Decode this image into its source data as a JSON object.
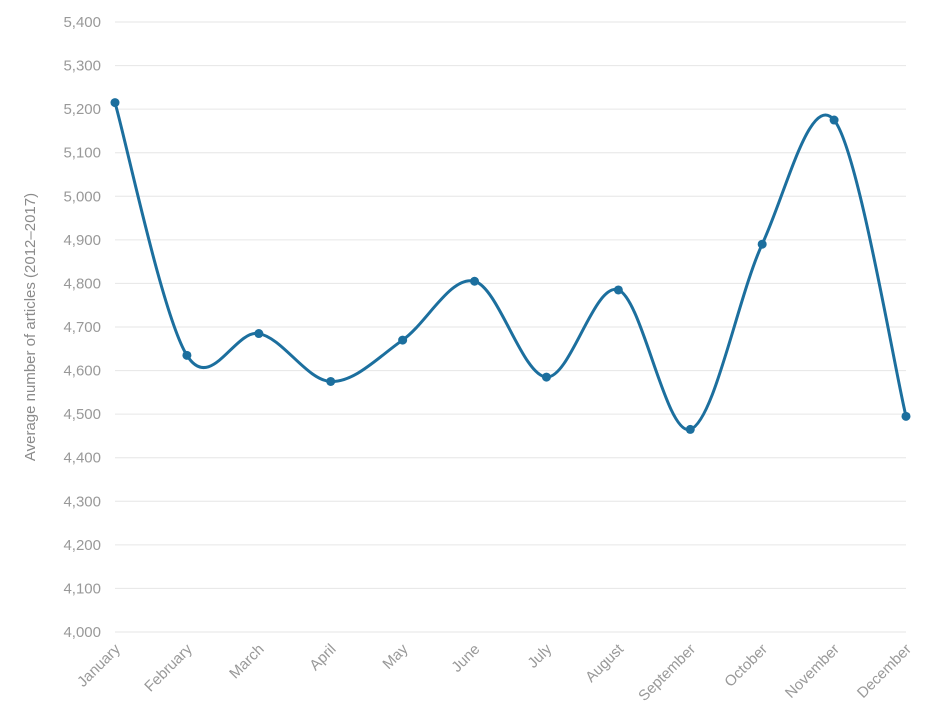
{
  "chart_data": {
    "type": "line",
    "title": "",
    "xlabel": "",
    "ylabel": "Average number of articles (2012–2017)",
    "categories": [
      "January",
      "February",
      "March",
      "April",
      "May",
      "June",
      "July",
      "August",
      "September",
      "October",
      "November",
      "December"
    ],
    "values": [
      5215,
      4635,
      4685,
      4575,
      4670,
      4805,
      4585,
      4785,
      4465,
      4890,
      5175,
      4495
    ],
    "ylim": [
      4000,
      5400
    ],
    "ytick_step": 100,
    "ytick_labels": [
      "4,000",
      "4,100",
      "4,200",
      "4,300",
      "4,400",
      "4,500",
      "4,600",
      "4,700",
      "4,800",
      "4,900",
      "5,000",
      "5,100",
      "5,200",
      "5,300",
      "5,400"
    ],
    "grid": true,
    "legend": false,
    "curve": "smooth",
    "marker": "circle",
    "colors": {
      "line": "#1c6f9e",
      "marker": "#1c6f9e",
      "grid": "#e6e6e6",
      "tick_label": "#999999",
      "axis_title": "#8a8a8a",
      "background": "#ffffff"
    }
  }
}
